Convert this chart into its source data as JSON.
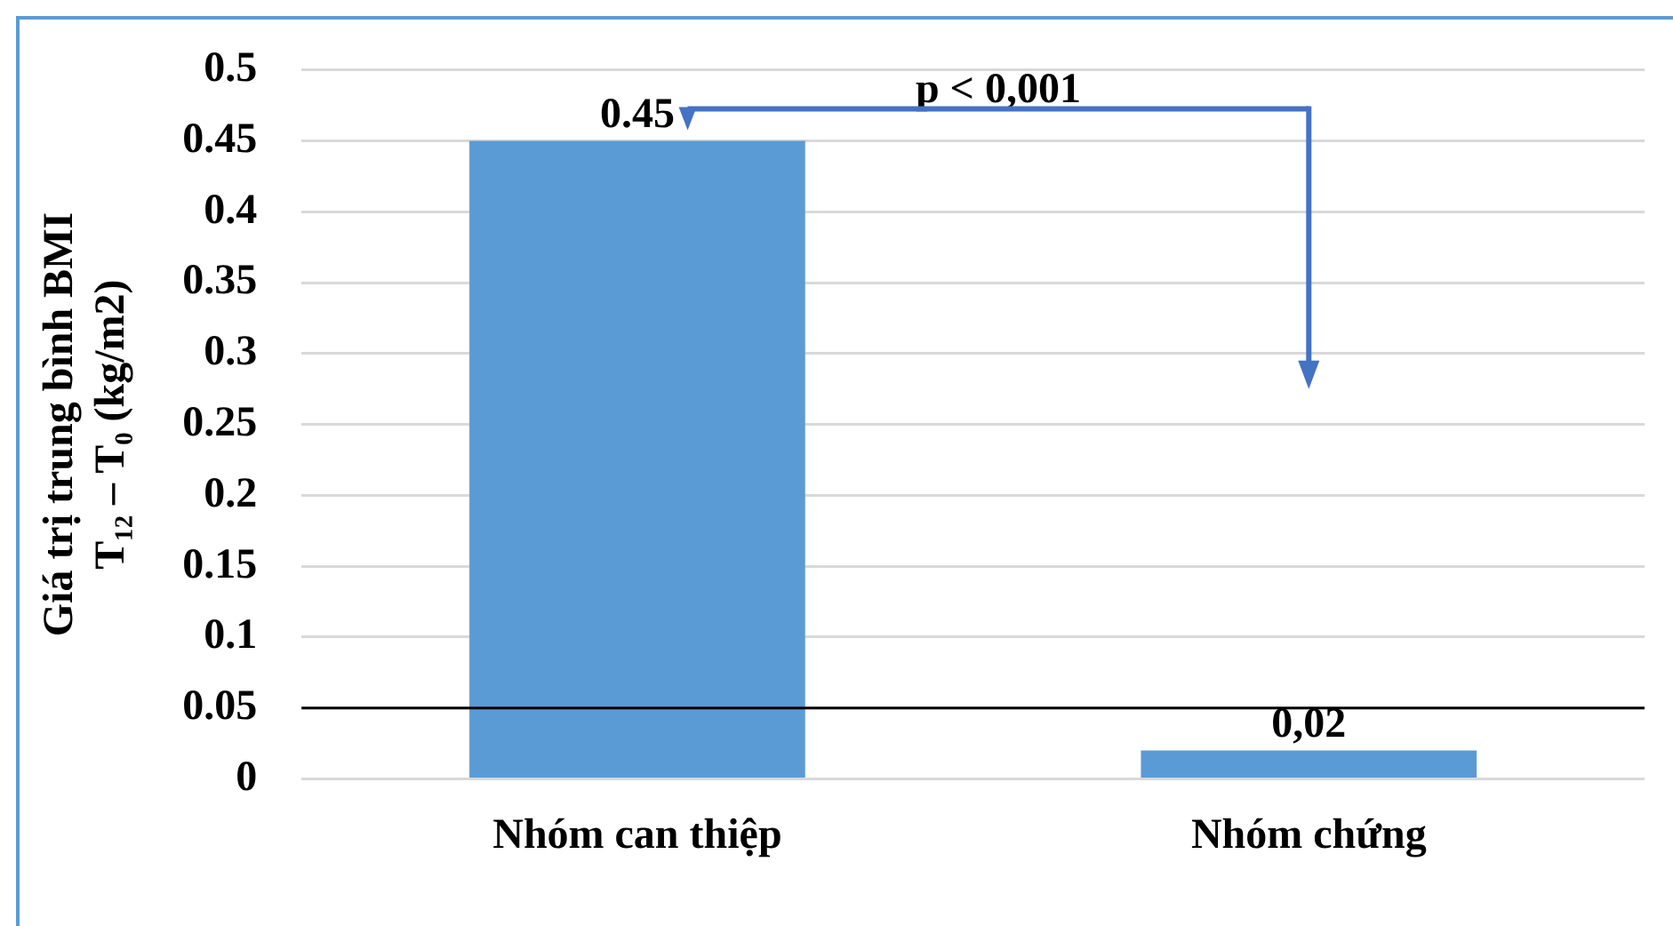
{
  "chart_data": {
    "type": "bar",
    "ylabel": "Giá trị trung bình BMI\nT₁₂ – T₀ (kg/m2)",
    "categories": [
      "Nhóm can thiệp",
      "Nhóm chứng"
    ],
    "values": [
      0.45,
      0.02
    ],
    "value_labels": [
      "0.45",
      "0,02"
    ],
    "color": "#5b9bd5",
    "ylim": [
      0,
      0.5
    ],
    "yticks": [
      0,
      0.05,
      0.1,
      0.15,
      0.2,
      0.25,
      0.3,
      0.35,
      0.4,
      0.45,
      0.5
    ],
    "grid": "y",
    "legend": false,
    "ref_lines": [
      {
        "axis": "y",
        "value": 0.05,
        "color": "#000000"
      }
    ],
    "annotations": [
      "p < 0,001"
    ]
  }
}
